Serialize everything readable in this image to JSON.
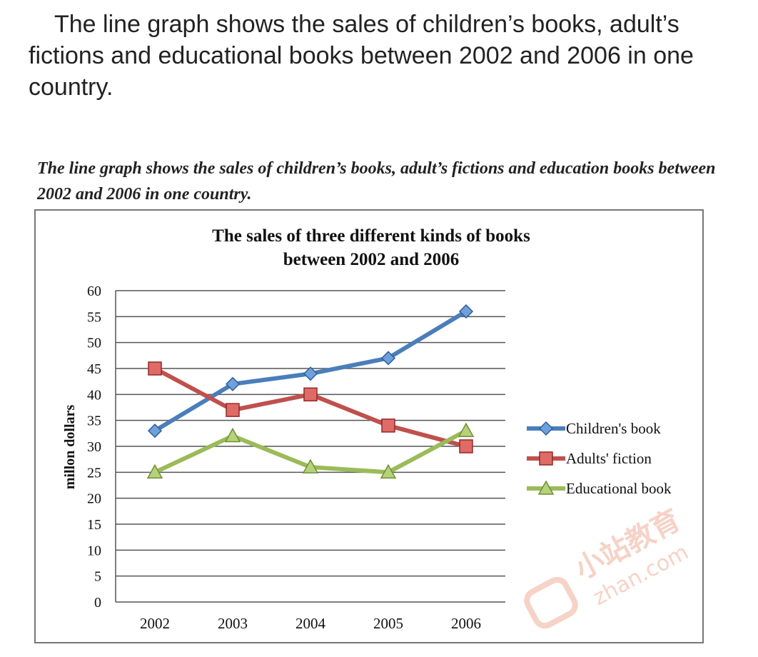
{
  "header": {
    "intro_text": "The line graph shows the sales of children’s books, adult’s fictions and educational books between 2002 and 2006 in one country.",
    "caption_text": "The line graph shows the sales of children’s books, adult’s fictions and education books between 2002 and 2006 in one country."
  },
  "watermark": {
    "text_cn": "小站教育",
    "text_en": "zhan.com"
  },
  "chart_data": {
    "type": "line",
    "title_line1": "The sales of three different kinds of books",
    "title_line2": "between 2002 and 2006",
    "ylabel": "millon dollars",
    "xlabel": "",
    "categories": [
      "2002",
      "2003",
      "2004",
      "2005",
      "2006"
    ],
    "ylim": [
      0,
      60
    ],
    "yticks": [
      0,
      5,
      10,
      15,
      20,
      25,
      30,
      35,
      40,
      45,
      50,
      55,
      60
    ],
    "grid": true,
    "legend_position": "right",
    "series": [
      {
        "name": "Children's book",
        "values": [
          33,
          42,
          44,
          47,
          56
        ],
        "color": "#4a7ebb",
        "marker": "diamond"
      },
      {
        "name": "Adults' fiction",
        "values": [
          45,
          37,
          40,
          34,
          30
        ],
        "color": "#c0504d",
        "marker": "square"
      },
      {
        "name": "Educational book",
        "values": [
          25,
          32,
          26,
          25,
          33
        ],
        "color": "#9bbb59",
        "marker": "triangle"
      }
    ]
  }
}
